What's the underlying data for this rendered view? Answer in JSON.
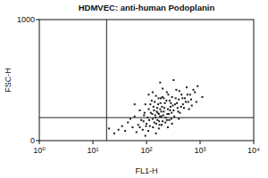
{
  "chart_data": {
    "type": "scatter",
    "title": "HDMVEC: anti-human Podoplanin",
    "x_label": "FL1-H",
    "y_label": "FSC-H",
    "log": "x",
    "color": "#1a1a1a",
    "marker": "dot",
    "xlim": [
      1,
      10000
    ],
    "xticks": [
      {
        "value": 1,
        "label": "10⁰"
      },
      {
        "value": 10,
        "label": "10¹"
      },
      {
        "value": 100,
        "label": "10²"
      },
      {
        "value": 1000,
        "label": "10³"
      },
      {
        "value": 10000,
        "label": "10⁴"
      }
    ],
    "ylim": [
      0,
      1000
    ],
    "yticks": [
      0,
      1000
    ],
    "gates": {
      "x": 18,
      "y": 190
    },
    "x": [
      30,
      45,
      55,
      60,
      70,
      75,
      80,
      85,
      90,
      95,
      100,
      105,
      110,
      115,
      120,
      125,
      130,
      135,
      140,
      145,
      150,
      155,
      160,
      165,
      170,
      175,
      180,
      185,
      190,
      195,
      200,
      210,
      220,
      230,
      240,
      250,
      260,
      270,
      280,
      290,
      300,
      320,
      340,
      360,
      380,
      400,
      420,
      450,
      480,
      520,
      560,
      600,
      650,
      700,
      800,
      900,
      1100,
      25,
      40,
      50,
      65,
      75,
      88,
      92,
      98,
      108,
      112,
      118,
      128,
      132,
      138,
      142,
      148,
      152,
      158,
      162,
      168,
      172,
      178,
      182,
      188,
      192,
      198,
      205,
      215,
      225,
      235,
      245,
      255,
      265,
      275,
      285,
      295,
      310,
      330,
      350,
      370,
      390,
      410,
      440,
      470,
      500,
      540,
      580,
      620,
      680,
      750,
      850,
      35,
      20,
      130,
      200,
      95,
      150,
      250,
      300,
      400,
      60,
      180,
      320,
      110,
      240,
      170,
      210
    ],
    "values": [
      90,
      150,
      110,
      200,
      130,
      250,
      170,
      90,
      210,
      300,
      140,
      190,
      260,
      120,
      230,
      330,
      180,
      280,
      150,
      210,
      370,
      240,
      170,
      300,
      220,
      130,
      260,
      350,
      200,
      280,
      160,
      240,
      310,
      190,
      400,
      260,
      220,
      330,
      280,
      180,
      360,
      250,
      300,
      420,
      270,
      340,
      230,
      380,
      300,
      350,
      440,
      320,
      380,
      290,
      400,
      450,
      360,
      60,
      80,
      180,
      70,
      110,
      160,
      230,
      120,
      80,
      170,
      300,
      220,
      110,
      250,
      320,
      190,
      140,
      270,
      230,
      350,
      160,
      200,
      310,
      240,
      130,
      360,
      210,
      270,
      150,
      330,
      220,
      380,
      170,
      250,
      310,
      230,
      290,
      200,
      350,
      310,
      240,
      410,
      280,
      350,
      270,
      320,
      380,
      260,
      340,
      420,
      320,
      120,
      100,
      400,
      430,
      40,
      60,
      110,
      140,
      180,
      300,
      480,
      500,
      380,
      170,
      100,
      350
    ]
  }
}
